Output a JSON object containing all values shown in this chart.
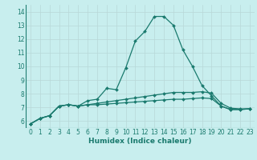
{
  "xlabel": "Humidex (Indice chaleur)",
  "x_values": [
    0,
    1,
    2,
    3,
    4,
    5,
    6,
    7,
    8,
    9,
    10,
    11,
    12,
    13,
    14,
    15,
    16,
    17,
    18,
    19,
    20,
    21,
    22,
    23
  ],
  "line1_y": [
    5.8,
    6.2,
    6.4,
    7.1,
    7.2,
    7.1,
    7.5,
    7.6,
    8.4,
    8.3,
    9.9,
    11.85,
    12.55,
    13.65,
    13.65,
    13.0,
    11.2,
    10.0,
    8.6,
    7.85,
    7.1,
    6.85,
    6.85,
    6.9
  ],
  "line2_y": [
    5.8,
    6.2,
    6.4,
    7.1,
    7.2,
    7.1,
    7.2,
    7.3,
    7.4,
    7.5,
    7.6,
    7.7,
    7.8,
    7.9,
    8.0,
    8.1,
    8.1,
    8.1,
    8.15,
    8.05,
    7.3,
    6.95,
    6.9,
    6.9
  ],
  "line3_y": [
    5.8,
    6.2,
    6.4,
    7.1,
    7.2,
    7.1,
    7.2,
    7.2,
    7.25,
    7.3,
    7.35,
    7.4,
    7.45,
    7.5,
    7.55,
    7.6,
    7.6,
    7.65,
    7.7,
    7.65,
    7.1,
    6.85,
    6.85,
    6.9
  ],
  "line_color": "#1a7a6e",
  "bg_color": "#c8eeee",
  "grid_color": "#b0d0d0",
  "xlim": [
    -0.5,
    23.5
  ],
  "ylim": [
    5.5,
    14.5
  ],
  "yticks": [
    6,
    7,
    8,
    9,
    10,
    11,
    12,
    13,
    14
  ],
  "xticks": [
    0,
    1,
    2,
    3,
    4,
    5,
    6,
    7,
    8,
    9,
    10,
    11,
    12,
    13,
    14,
    15,
    16,
    17,
    18,
    19,
    20,
    21,
    22,
    23
  ],
  "tick_fontsize": 5.5,
  "xlabel_fontsize": 6.5
}
